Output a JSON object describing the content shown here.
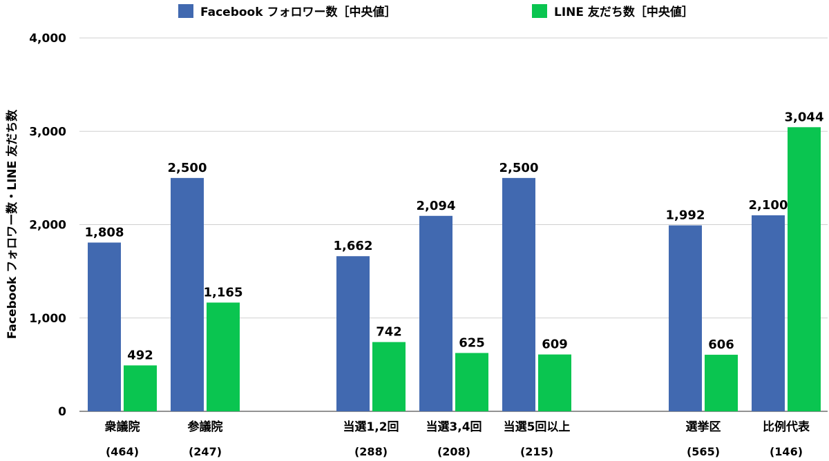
{
  "chart_data": {
    "type": "bar",
    "ylabel": "Facebook フォロワー数・LINE 友だち数",
    "ylim": [
      0,
      4000
    ],
    "yticks": [
      "0",
      "1,000",
      "2,000",
      "3,000",
      "4,000"
    ],
    "ytick_values": [
      0,
      1000,
      2000,
      3000,
      4000
    ],
    "grid": true,
    "legend_position": "top",
    "groups": [
      {
        "label": "衆議院",
        "n": "(464)"
      },
      {
        "label": "参議院",
        "n": "(247)"
      },
      {
        "label": "当選1,2回",
        "n": "(288)"
      },
      {
        "label": "当選3,4回",
        "n": "(208)"
      },
      {
        "label": "当選5回以上",
        "n": "(215)"
      },
      {
        "label": "選挙区",
        "n": "(565)"
      },
      {
        "label": "比例代表",
        "n": "(146)"
      }
    ],
    "series": [
      {
        "name": "Facebook フォロワー数［中央値］",
        "color": "#4169b0",
        "values": [
          1808,
          2500,
          1662,
          2094,
          2500,
          1992,
          2100
        ],
        "labels": [
          "1,808",
          "2,500",
          "1,662",
          "2,094",
          "2,500",
          "1,992",
          "2,100"
        ]
      },
      {
        "name": "LINE 友だち数［中央値］",
        "color": "#0ac550",
        "values": [
          492,
          1165,
          742,
          625,
          609,
          606,
          3044
        ],
        "labels": [
          "492",
          "1,165",
          "742",
          "625",
          "609",
          "606",
          "3,044"
        ]
      }
    ]
  }
}
